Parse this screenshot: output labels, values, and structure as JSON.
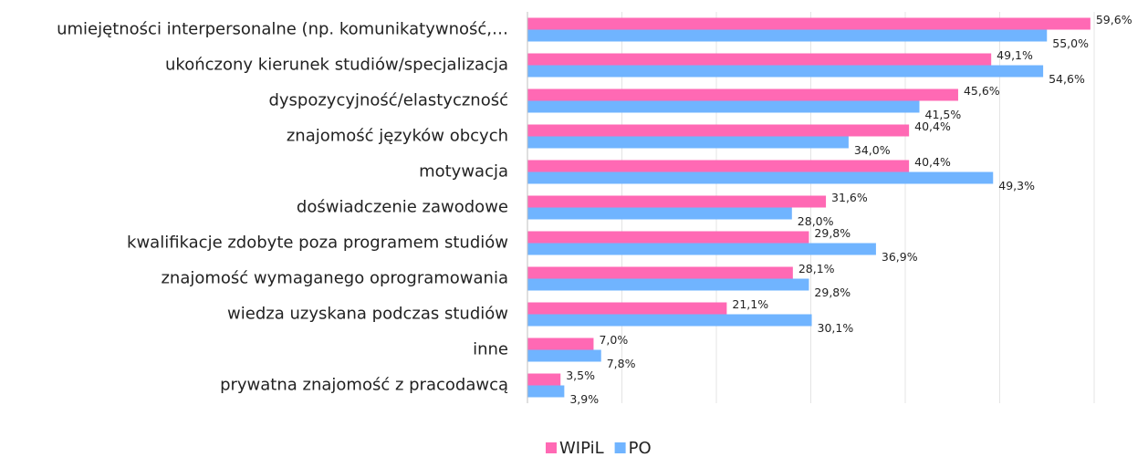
{
  "chart_data": {
    "type": "bar",
    "orientation": "horizontal",
    "categories": [
      "umiejętności interpersonalne (np. komunikatywność,…",
      "ukończony kierunek studiów/specjalizacja",
      "dyspozycyjność/elastyczność",
      "znajomość języków obcych",
      "motywacja",
      "doświadczenie zawodowe",
      "kwalifikacje zdobyte poza programem studiów",
      "znajomość wymaganego oprogramowania",
      "wiedza uzyskana podczas studiów",
      "inne",
      "prywatna znajomość z pracodawcą"
    ],
    "series": [
      {
        "name": "WIPiL",
        "color": "#ff69b4",
        "values": [
          59.6,
          49.1,
          45.6,
          40.4,
          40.4,
          31.6,
          29.8,
          28.1,
          21.1,
          7.0,
          3.5
        ],
        "value_labels": [
          "59,6%",
          "49,1%",
          "45,6%",
          "40,4%",
          "40,4%",
          "31,6%",
          "29,8%",
          "28,1%",
          "21,1%",
          "7,0%",
          "3,5%"
        ]
      },
      {
        "name": "PO",
        "color": "#70b4ff",
        "values": [
          55.0,
          54.6,
          41.5,
          34.0,
          49.3,
          28.0,
          36.9,
          29.8,
          30.1,
          7.8,
          3.9
        ],
        "value_labels": [
          "55,0%",
          "54,6%",
          "41,5%",
          "34,0%",
          "49,3%",
          "28,0%",
          "36,9%",
          "29,8%",
          "30,1%",
          "7,8%",
          "3,9%"
        ]
      }
    ],
    "xlim": [
      0,
      60
    ],
    "xticks": [
      0,
      10,
      20,
      30,
      40,
      50,
      60
    ],
    "grid": true,
    "legend": "bottom"
  }
}
